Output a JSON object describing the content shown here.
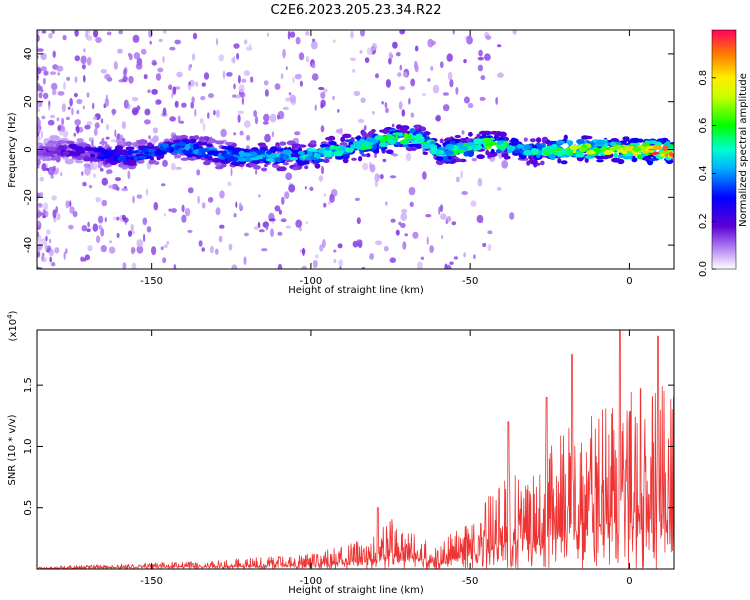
{
  "title": "C2E6.2023.205.23.34.R22",
  "chart_data": [
    {
      "type": "heatmap",
      "xlabel": "Height of straight line (km)",
      "ylabel": "Frequency (Hz)",
      "xlim": [
        -186,
        14
      ],
      "ylim": [
        -50,
        50
      ],
      "xticks": [
        -150,
        -100,
        -50,
        0
      ],
      "yticks": [
        -40,
        -20,
        0,
        20,
        40
      ],
      "colorbar": {
        "label": "Normalized spectral amplitude",
        "range": [
          0,
          1
        ],
        "ticks": [
          0.0,
          0.2,
          0.4,
          0.6,
          0.8
        ]
      },
      "ridge": {
        "x": [
          -186,
          -175,
          -165,
          -158,
          -150,
          -140,
          -130,
          -120,
          -110,
          -100,
          -90,
          -80,
          -72,
          -65,
          -60,
          -50,
          -45,
          -40,
          -35,
          -30,
          -20,
          -10,
          0,
          5,
          14
        ],
        "frequency": [
          -1,
          0,
          -2,
          -3,
          -1,
          1,
          -2,
          -3,
          -3,
          -2,
          0,
          3,
          5,
          4,
          -1,
          1,
          3,
          2,
          0,
          -1,
          0,
          0,
          0,
          0,
          -1
        ],
        "amplitude": [
          0.12,
          0.22,
          0.28,
          0.32,
          0.35,
          0.4,
          0.38,
          0.42,
          0.45,
          0.48,
          0.5,
          0.55,
          0.6,
          0.55,
          0.5,
          0.55,
          0.6,
          0.55,
          0.45,
          0.5,
          0.65,
          0.75,
          0.8,
          0.9,
          0.85
        ]
      }
    },
    {
      "type": "line",
      "xlabel": "Height of straight line (km)",
      "ylabel": "SNR (10 * v/v)",
      "y_scale_label": "(x10",
      "y_scale_exp": "4",
      "y_scale_close": ")",
      "xlim": [
        -186,
        14
      ],
      "ylim": [
        0,
        19500
      ],
      "xticks": [
        -150,
        -100,
        -50,
        0
      ],
      "yticks": [
        5000,
        10000,
        15000
      ],
      "ytick_labels": [
        "0.5",
        "1.0",
        "1.5"
      ],
      "series": [
        {
          "name": "SNR",
          "color": "#ee3333",
          "envelope_x": [
            -186,
            -150,
            -120,
            -100,
            -90,
            -80,
            -75,
            -70,
            -60,
            -55,
            -50,
            -45,
            -40,
            -35,
            -30,
            -25,
            -20,
            -15,
            -10,
            -5,
            0,
            5,
            10,
            14
          ],
          "envelope_y": [
            150,
            400,
            700,
            1000,
            1500,
            2200,
            3500,
            2500,
            1500,
            2500,
            3000,
            4500,
            6000,
            6500,
            7000,
            8000,
            9000,
            10000,
            10500,
            11000,
            11500,
            12000,
            12000,
            11500
          ],
          "peaks": [
            {
              "x": -79,
              "y": 5000
            },
            {
              "x": -38,
              "y": 12000
            },
            {
              "x": -26,
              "y": 14000
            },
            {
              "x": -18,
              "y": 17500
            },
            {
              "x": -3,
              "y": 19500
            },
            {
              "x": 9,
              "y": 19000
            },
            {
              "x": 14,
              "y": 14000
            }
          ]
        }
      ]
    }
  ]
}
